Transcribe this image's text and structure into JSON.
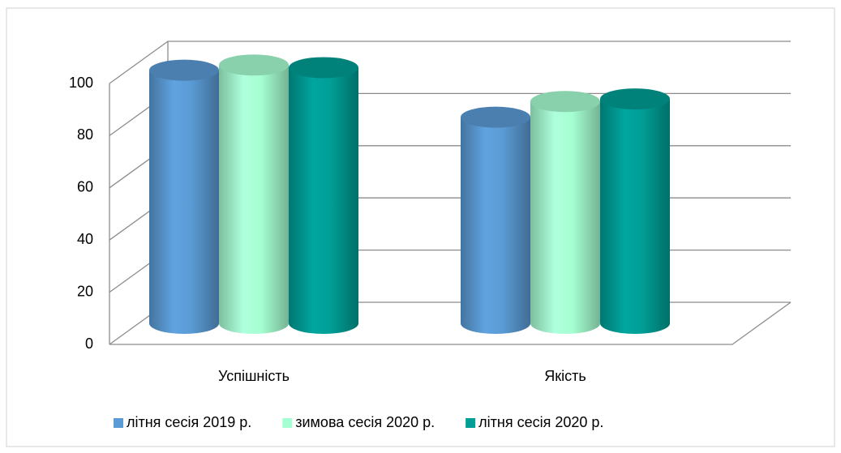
{
  "chart_data": {
    "type": "bar3d",
    "categories": [
      "Успішність",
      "Якість"
    ],
    "series": [
      {
        "name": "літня сесія 2019 р.",
        "color": "#5b9bd5",
        "values": [
          97,
          79
        ]
      },
      {
        "name": "зимова сесія 2020 р.",
        "color": "#a6ffd2",
        "values": [
          99,
          85
        ]
      },
      {
        "name": "літня сесія 2020 р.",
        "color": "#009e96",
        "values": [
          98,
          86
        ]
      }
    ],
    "ylim": [
      0,
      100
    ],
    "yticks": [
      0,
      20,
      40,
      60,
      80,
      100
    ],
    "grid": true,
    "legend": "bottom"
  }
}
